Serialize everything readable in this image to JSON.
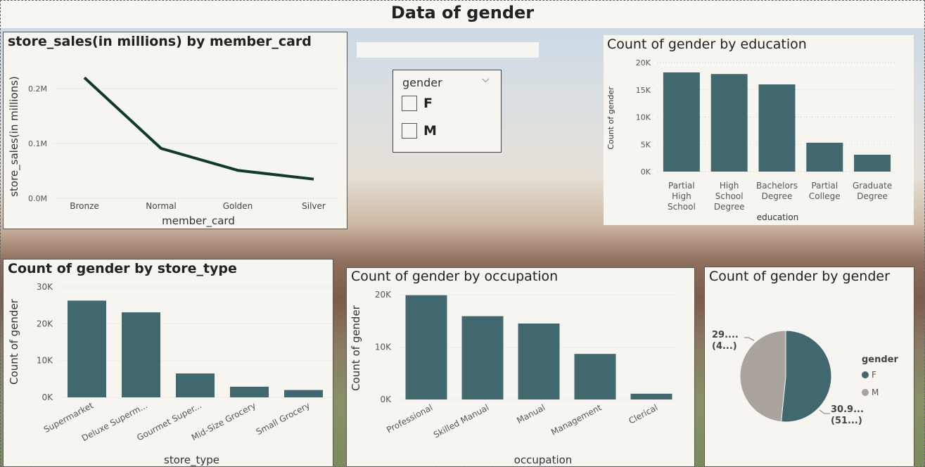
{
  "page": {
    "title": "Data of gender"
  },
  "colors": {
    "bar": "#41676f",
    "line": "#0f3b2c",
    "pie_f": "#41676f",
    "pie_m": "#aaa39e",
    "panel": "#f7f5f0"
  },
  "slicer": {
    "header": "gender",
    "chevron": "⌵",
    "options": [
      "F",
      "M"
    ]
  },
  "chart_data": [
    {
      "id": "member_card",
      "type": "line",
      "title": "store_sales(in millions) by member_card",
      "xlabel": "member_card",
      "ylabel": "store_sales(in millions)",
      "categories": [
        "Bronze",
        "Normal",
        "Golden",
        "Silver"
      ],
      "values": [
        0.22,
        0.091,
        0.051,
        0.035
      ],
      "yticks": [
        "0.0M",
        "0.1M",
        "0.2M"
      ],
      "ylim": [
        0,
        0.2
      ]
    },
    {
      "id": "education",
      "type": "bar",
      "title": "Count of gender by education",
      "xlabel": "education",
      "ylabel": "Count of gender",
      "categories": [
        "Partial High School",
        "High School Degree",
        "Bachelors Degree",
        "Partial College",
        "Graduate Degree"
      ],
      "values": [
        18200,
        17900,
        16000,
        5300,
        3100
      ],
      "yticks": [
        "0K",
        "5K",
        "10K",
        "15K",
        "20K"
      ],
      "ylim": [
        0,
        20000
      ]
    },
    {
      "id": "store_type",
      "type": "bar",
      "title": "Count of gender by store_type",
      "xlabel": "store_type",
      "ylabel": "Count of gender",
      "categories": [
        "Supermarket",
        "Deluxe Superm...",
        "Gourmet Super...",
        "Mid-Size Grocery",
        "Small Grocery"
      ],
      "values": [
        26300,
        23100,
        6500,
        2900,
        2000
      ],
      "yticks": [
        "0K",
        "10K",
        "20K",
        "30K"
      ],
      "ylim": [
        0,
        30000
      ]
    },
    {
      "id": "occupation",
      "type": "bar",
      "title": "Count of gender by occupation",
      "xlabel": "occupation",
      "ylabel": "Count of gender",
      "categories": [
        "Professional",
        "Skilled Manual",
        "Manual",
        "Management",
        "Clerical"
      ],
      "values": [
        19900,
        15900,
        14500,
        8700,
        1100
      ],
      "yticks": [
        "0K",
        "10K",
        "20K"
      ],
      "ylim": [
        0,
        20000
      ]
    },
    {
      "id": "gender",
      "type": "pie",
      "title": "Count of gender by gender",
      "legend_title": "gender",
      "legend": [
        "F",
        "M"
      ],
      "values": [
        30.9,
        29.0
      ],
      "percent": [
        51,
        49
      ],
      "labels": [
        {
          "line1": "30.9...",
          "line2": "(51...)"
        },
        {
          "line1": "29....",
          "line2": "(4...)"
        }
      ]
    }
  ]
}
